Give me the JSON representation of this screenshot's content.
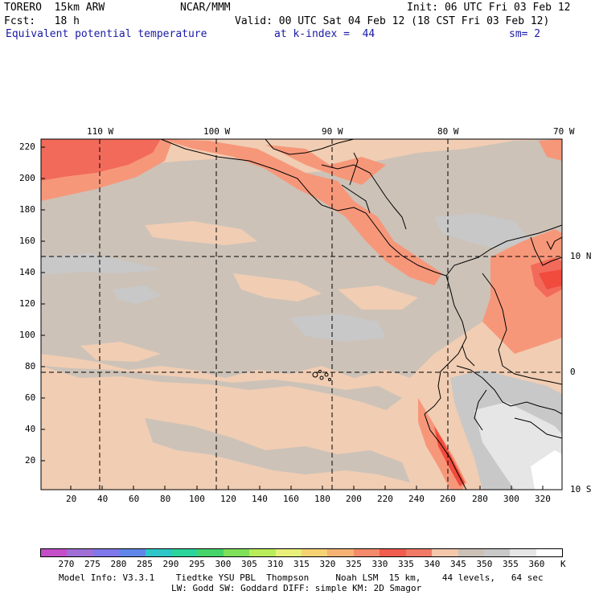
{
  "header": {
    "model": "TORERO  15km ARW",
    "center": "NCAR/MMM",
    "init": "Init: 06 UTC Fri 03 Feb 12",
    "fcst": "Fcst:   18 h",
    "valid": "Valid: 00 UTC Sat 04 Feb 12 (18 CST Fri 03 Feb 12)",
    "field": "Equivalent potential temperature",
    "level": "at k-index =  44",
    "smooth": "sm= 2"
  },
  "map": {
    "lon_labels": [
      "110 W",
      "100 W",
      "90 W",
      "80 W",
      "70 W"
    ],
    "lat_labels": [
      "10 N",
      "0",
      "10 S"
    ],
    "y_ticks": [
      "220",
      "200",
      "180",
      "160",
      "140",
      "120",
      "100",
      "80",
      "60",
      "40",
      "20"
    ],
    "x_ticks": [
      "20",
      "40",
      "60",
      "80",
      "100",
      "120",
      "140",
      "160",
      "180",
      "200",
      "220",
      "240",
      "260",
      "280",
      "300",
      "320"
    ],
    "colors": {
      "ocean_bg": "#f0cdb3",
      "band_345": "#ccc2b8",
      "band_350": "#c8c8c8",
      "band_355": "#e6e6e6",
      "band_335": "#f7977a",
      "band_330": "#f26a5a",
      "band_325": "#f04b3c"
    }
  },
  "colorbar": {
    "labels": [
      "270",
      "275",
      "280",
      "285",
      "290",
      "295",
      "300",
      "305",
      "310",
      "315",
      "320",
      "325",
      "330",
      "335",
      "340",
      "345",
      "350",
      "355",
      "360"
    ],
    "unit": "K",
    "colors": [
      "#c44ec8",
      "#9f6fd6",
      "#7f77ea",
      "#5f86e8",
      "#2ec6c8",
      "#2ad49a",
      "#46d46a",
      "#7fe05a",
      "#b8ec5a",
      "#e8f07a",
      "#f6d273",
      "#f5b273",
      "#f48a6a",
      "#f05c4e",
      "#f07a66",
      "#f4c7aa",
      "#cbc1b6",
      "#c8c8c8",
      "#e6e6e6",
      "#ffffff"
    ]
  },
  "footer": {
    "line1": "Model Info: V3.3.1    Tiedtke YSU PBL  Thompson     Noah LSM  15 km,    44 levels,   64 sec",
    "line2": "LW: Godd SW: Goddard DIFF: simple KM: 2D Smagor"
  }
}
